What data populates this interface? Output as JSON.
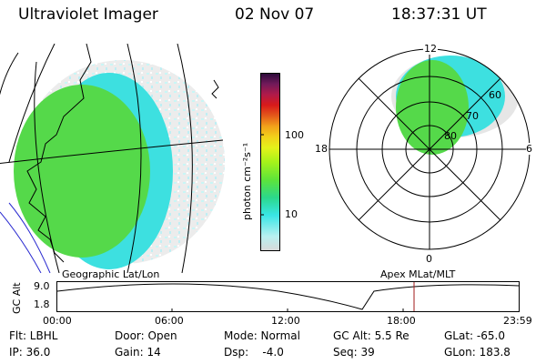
{
  "header": {
    "instrument": "Ultraviolet Imager",
    "date": "02 Nov 07",
    "time": "18:37:31 UT"
  },
  "colorbar": {
    "unit_label": "photon cm⁻²s⁻¹",
    "ticks": [
      "100",
      "10"
    ],
    "colors": [
      "#d9d9d9",
      "#b9f0f0",
      "#39e6e6",
      "#2bd88a",
      "#5ee43a",
      "#a6f21a",
      "#e4f21a",
      "#f2d21a",
      "#f2a21a",
      "#e45a1a",
      "#d81a1a",
      "#b01a4a",
      "#701a5a",
      "#2a0a3a"
    ]
  },
  "geo_map": {
    "label": "Geographic Lat/Lon"
  },
  "polar_plot": {
    "label": "Apex MLat/MLT",
    "clock_labels": {
      "top": "12",
      "left": "18",
      "right": "6",
      "bottom": "0"
    },
    "ring_labels": [
      "60",
      "70",
      "80"
    ]
  },
  "altitude_plot": {
    "ylabel": "GC Alt",
    "yticks": [
      "9.0",
      "1.8"
    ],
    "xticks": [
      "00:00",
      "06:00",
      "12:00",
      "18:00",
      "23:59"
    ]
  },
  "info": {
    "filter": "Flt: LBHL",
    "door": "Door: Open",
    "mode": "Mode: Normal",
    "gc_alt": "GC Alt: 5.5 Re",
    "glat": "GLat: -65.0",
    "ip": "IP: 36.0",
    "gain": "Gain: 14",
    "dsp": "Dsp:    -4.0",
    "seq": "Seq: 39",
    "glon": "GLon: 183.8"
  }
}
